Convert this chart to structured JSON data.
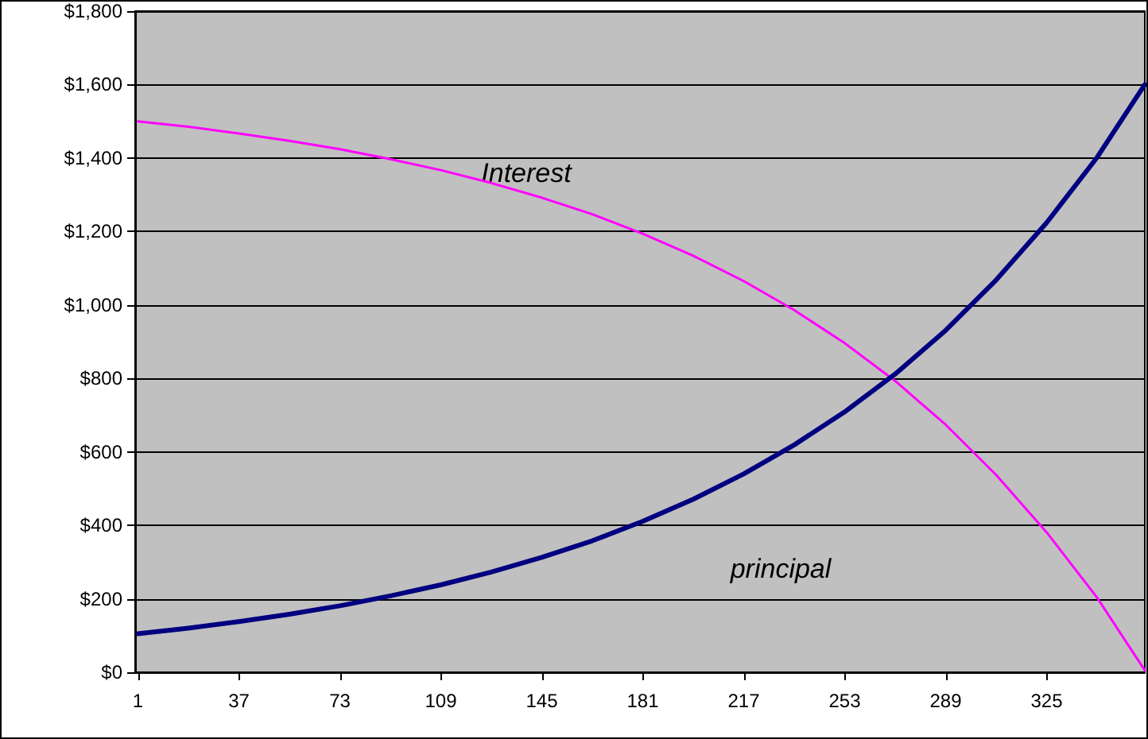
{
  "chart_data": {
    "type": "line",
    "x": [
      1,
      19,
      37,
      55,
      73,
      91,
      109,
      127,
      145,
      163,
      181,
      199,
      217,
      235,
      253,
      271,
      289,
      307,
      325,
      343,
      360
    ],
    "series": [
      {
        "color": "#ff00ff",
        "values": [
          1500,
          1485,
          1467,
          1447,
          1424,
          1397,
          1367,
          1332,
          1292,
          1247,
          1194,
          1134,
          1065,
          986,
          896,
          793,
          674,
          537,
          381,
          203,
          5
        ]
      },
      {
        "color": "#000080",
        "values": [
          105,
          120,
          138,
          158,
          181,
          208,
          238,
          273,
          313,
          358,
          411,
          471,
          540,
          619,
          709,
          812,
          931,
          1068,
          1224,
          1402,
          1600
        ]
      }
    ],
    "xlim": [
      0,
      360
    ],
    "xticks": [
      1,
      37,
      73,
      109,
      145,
      181,
      217,
      253,
      289,
      325
    ],
    "ylim": [
      0,
      1800
    ],
    "yticks": [
      {
        "value": 0,
        "label": "$0"
      },
      {
        "value": 200,
        "label": "$200"
      },
      {
        "value": 400,
        "label": "$400"
      },
      {
        "value": 600,
        "label": "$600"
      },
      {
        "value": 800,
        "label": "$800"
      },
      {
        "value": 1000,
        "label": "$1,000"
      },
      {
        "value": 1200,
        "label": "$1,200"
      },
      {
        "value": 1400,
        "label": "$1,400"
      },
      {
        "value": 1600,
        "label": "$1,600"
      },
      {
        "value": 1800,
        "label": "$1,800"
      }
    ],
    "grid": "y",
    "marker": "none",
    "line_style": "solid",
    "annotations": [
      "Interest",
      "principal"
    ]
  }
}
